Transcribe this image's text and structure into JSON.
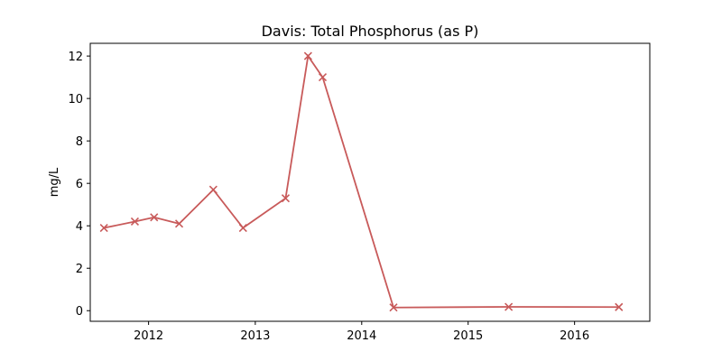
{
  "chart_data": {
    "type": "line",
    "title": "Davis: Total Phosphorus (as P)",
    "xlabel": "",
    "ylabel": "mg/L",
    "x_axis_type": "date",
    "x_ticks": [
      "2012-01-01",
      "2013-01-01",
      "2014-01-01",
      "2015-01-01",
      "2016-01-01"
    ],
    "x_tick_labels": [
      "2012",
      "2013",
      "2014",
      "2015",
      "2016"
    ],
    "xlim": [
      "2011-06-15",
      "2016-09-15"
    ],
    "ylim": [
      -0.5,
      12.6
    ],
    "y_ticks": [
      0,
      2,
      4,
      6,
      8,
      10,
      12
    ],
    "grid": false,
    "marker": "x",
    "line_color": "#c85a5a",
    "series": [
      {
        "points": [
          [
            "2011-08-01",
            3.9
          ],
          [
            "2011-11-15",
            4.2
          ],
          [
            "2012-01-20",
            4.4
          ],
          [
            "2012-04-15",
            4.1
          ],
          [
            "2012-08-10",
            5.7
          ],
          [
            "2012-11-20",
            3.9
          ],
          [
            "2013-04-15",
            5.3
          ],
          [
            "2013-07-01",
            12.0
          ],
          [
            "2013-08-20",
            11.0
          ],
          [
            "2014-04-20",
            0.15
          ],
          [
            "2015-05-20",
            0.18
          ],
          [
            "2016-06-01",
            0.17
          ]
        ]
      }
    ]
  }
}
